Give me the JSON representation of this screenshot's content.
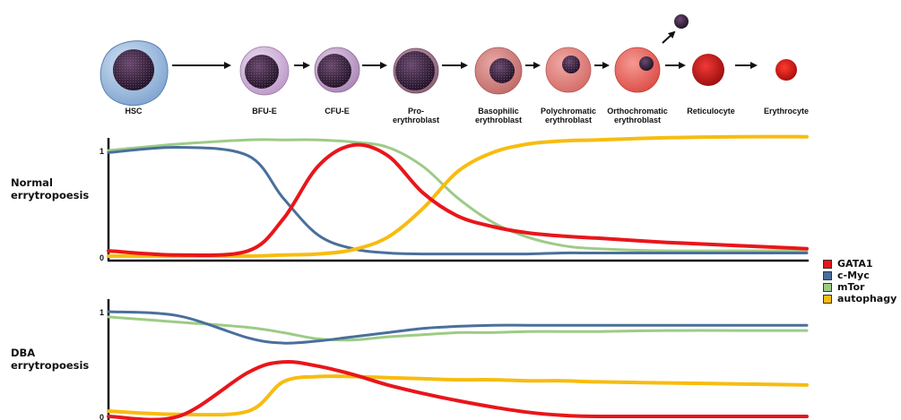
{
  "stages": [
    {
      "id": "hsc",
      "label": [
        "HSC"
      ]
    },
    {
      "id": "bfu-e",
      "label": [
        "BFU-E"
      ]
    },
    {
      "id": "cfu-e",
      "label": [
        "CFU-E"
      ]
    },
    {
      "id": "proerythroblast",
      "label": [
        "Pro-",
        "erythroblast"
      ]
    },
    {
      "id": "basophilic",
      "label": [
        "Basophilic",
        "erythroblast"
      ]
    },
    {
      "id": "polychromatic",
      "label": [
        "Polychromatic",
        "erythroblast"
      ]
    },
    {
      "id": "orthochromatic",
      "label": [
        "Orthochromatic",
        "erythroblast"
      ]
    },
    {
      "id": "reticulocyte",
      "label": [
        "Reticulocyte"
      ]
    },
    {
      "id": "erythrocyte",
      "label": [
        "Erythrocyte"
      ]
    }
  ],
  "panels": [
    {
      "id": "normal",
      "label_lines": [
        "Normal",
        "errytropoesis"
      ],
      "ticks": [
        "1",
        "0"
      ]
    },
    {
      "id": "dba",
      "label_lines": [
        "DBA",
        "errytropoesis"
      ],
      "ticks": [
        "1",
        "0"
      ]
    }
  ],
  "legend": [
    {
      "key": "gata1",
      "label": "GATA1",
      "color": "#e8161b"
    },
    {
      "key": "cmyc",
      "label": "c-Myc",
      "color": "#4a6f9c"
    },
    {
      "key": "mtor",
      "label": "mTor",
      "color": "#9dcb86"
    },
    {
      "key": "autophagy",
      "label": "autophagy",
      "color": "#f7bc10"
    }
  ],
  "chart_data": [
    {
      "type": "line",
      "panel": "normal",
      "ylim": [
        0,
        1.15
      ],
      "x": [
        0,
        0.1,
        0.2,
        0.25,
        0.3,
        0.35,
        0.4,
        0.45,
        0.5,
        0.55,
        0.6,
        0.65,
        0.7,
        0.8,
        0.9,
        1.0
      ],
      "series": [
        {
          "name": "GATA1",
          "values": [
            0.05,
            0.01,
            0.05,
            0.35,
            0.85,
            1.05,
            0.95,
            0.6,
            0.38,
            0.28,
            0.22,
            0.19,
            0.17,
            0.13,
            0.1,
            0.07
          ]
        },
        {
          "name": "c-Myc",
          "values": [
            0.98,
            1.03,
            0.95,
            0.55,
            0.2,
            0.07,
            0.03,
            0.02,
            0.02,
            0.02,
            0.02,
            0.03,
            0.03,
            0.03,
            0.03,
            0.03
          ]
        },
        {
          "name": "mTor",
          "values": [
            1.0,
            1.06,
            1.1,
            1.1,
            1.1,
            1.08,
            1.03,
            0.85,
            0.55,
            0.32,
            0.18,
            0.1,
            0.07,
            0.05,
            0.05,
            0.05
          ]
        },
        {
          "name": "autophagy",
          "values": [
            0.0,
            0.0,
            0.0,
            0.01,
            0.02,
            0.06,
            0.18,
            0.45,
            0.8,
            0.98,
            1.06,
            1.09,
            1.1,
            1.12,
            1.13,
            1.13
          ]
        }
      ]
    },
    {
      "type": "line",
      "panel": "dba",
      "ylim": [
        0,
        1.15
      ],
      "x": [
        0,
        0.1,
        0.2,
        0.25,
        0.3,
        0.35,
        0.4,
        0.45,
        0.5,
        0.55,
        0.6,
        0.65,
        0.7,
        0.8,
        0.9,
        1.0
      ],
      "series": [
        {
          "name": "GATA1",
          "values": [
            0.0,
            0.0,
            0.42,
            0.52,
            0.48,
            0.4,
            0.3,
            0.22,
            0.15,
            0.09,
            0.04,
            0.01,
            0.0,
            0.0,
            0.0,
            0.0
          ]
        },
        {
          "name": "c-Myc",
          "values": [
            1.0,
            0.96,
            0.75,
            0.7,
            0.72,
            0.76,
            0.8,
            0.84,
            0.86,
            0.87,
            0.87,
            0.87,
            0.87,
            0.87,
            0.87,
            0.87
          ]
        },
        {
          "name": "mTor",
          "values": [
            0.95,
            0.9,
            0.85,
            0.8,
            0.74,
            0.73,
            0.76,
            0.78,
            0.8,
            0.8,
            0.81,
            0.81,
            0.81,
            0.82,
            0.82,
            0.82
          ]
        },
        {
          "name": "autophagy",
          "values": [
            0.05,
            0.02,
            0.05,
            0.33,
            0.38,
            0.38,
            0.37,
            0.36,
            0.35,
            0.35,
            0.34,
            0.34,
            0.33,
            0.32,
            0.31,
            0.3
          ]
        }
      ]
    }
  ]
}
